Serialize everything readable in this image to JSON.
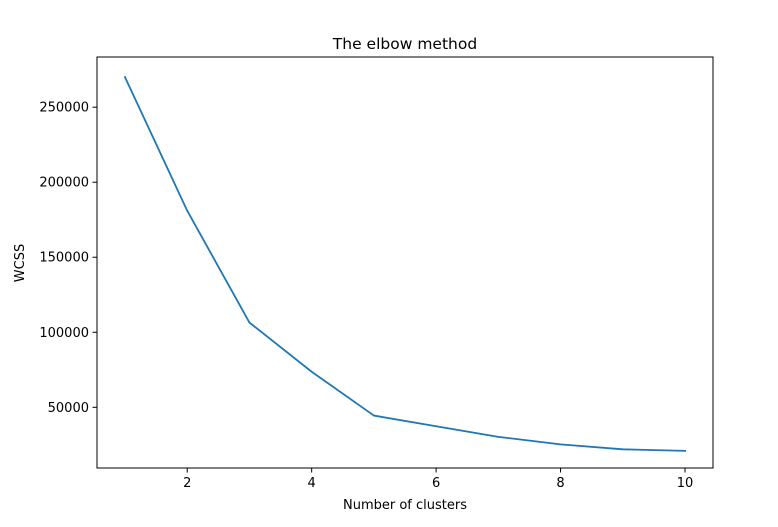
{
  "chart_data": {
    "type": "line",
    "title": "The elbow method",
    "xlabel": "Number of clusters",
    "ylabel": "WCSS",
    "x": [
      1,
      2,
      3,
      4,
      5,
      6,
      7,
      8,
      9,
      10
    ],
    "series": [
      {
        "values": [
          270000,
          181000,
          106500,
          73700,
          44500,
          37400,
          30300,
          25300,
          22000,
          21000
        ]
      }
    ],
    "xlim": [
      0.55,
      10.45
    ],
    "ylim": [
      9550,
      283450
    ],
    "xticks": [
      2,
      4,
      6,
      8,
      10
    ],
    "yticks": [
      50000,
      100000,
      150000,
      200000,
      250000
    ],
    "xtick_labels": [
      "2",
      "4",
      "6",
      "8",
      "10"
    ],
    "ytick_labels": [
      "50000",
      "100000",
      "150000",
      "200000",
      "250000"
    ],
    "grid": false,
    "legend": false
  },
  "colors": {
    "line": "#1f77b4",
    "axes": "#000000",
    "background": "#ffffff"
  }
}
